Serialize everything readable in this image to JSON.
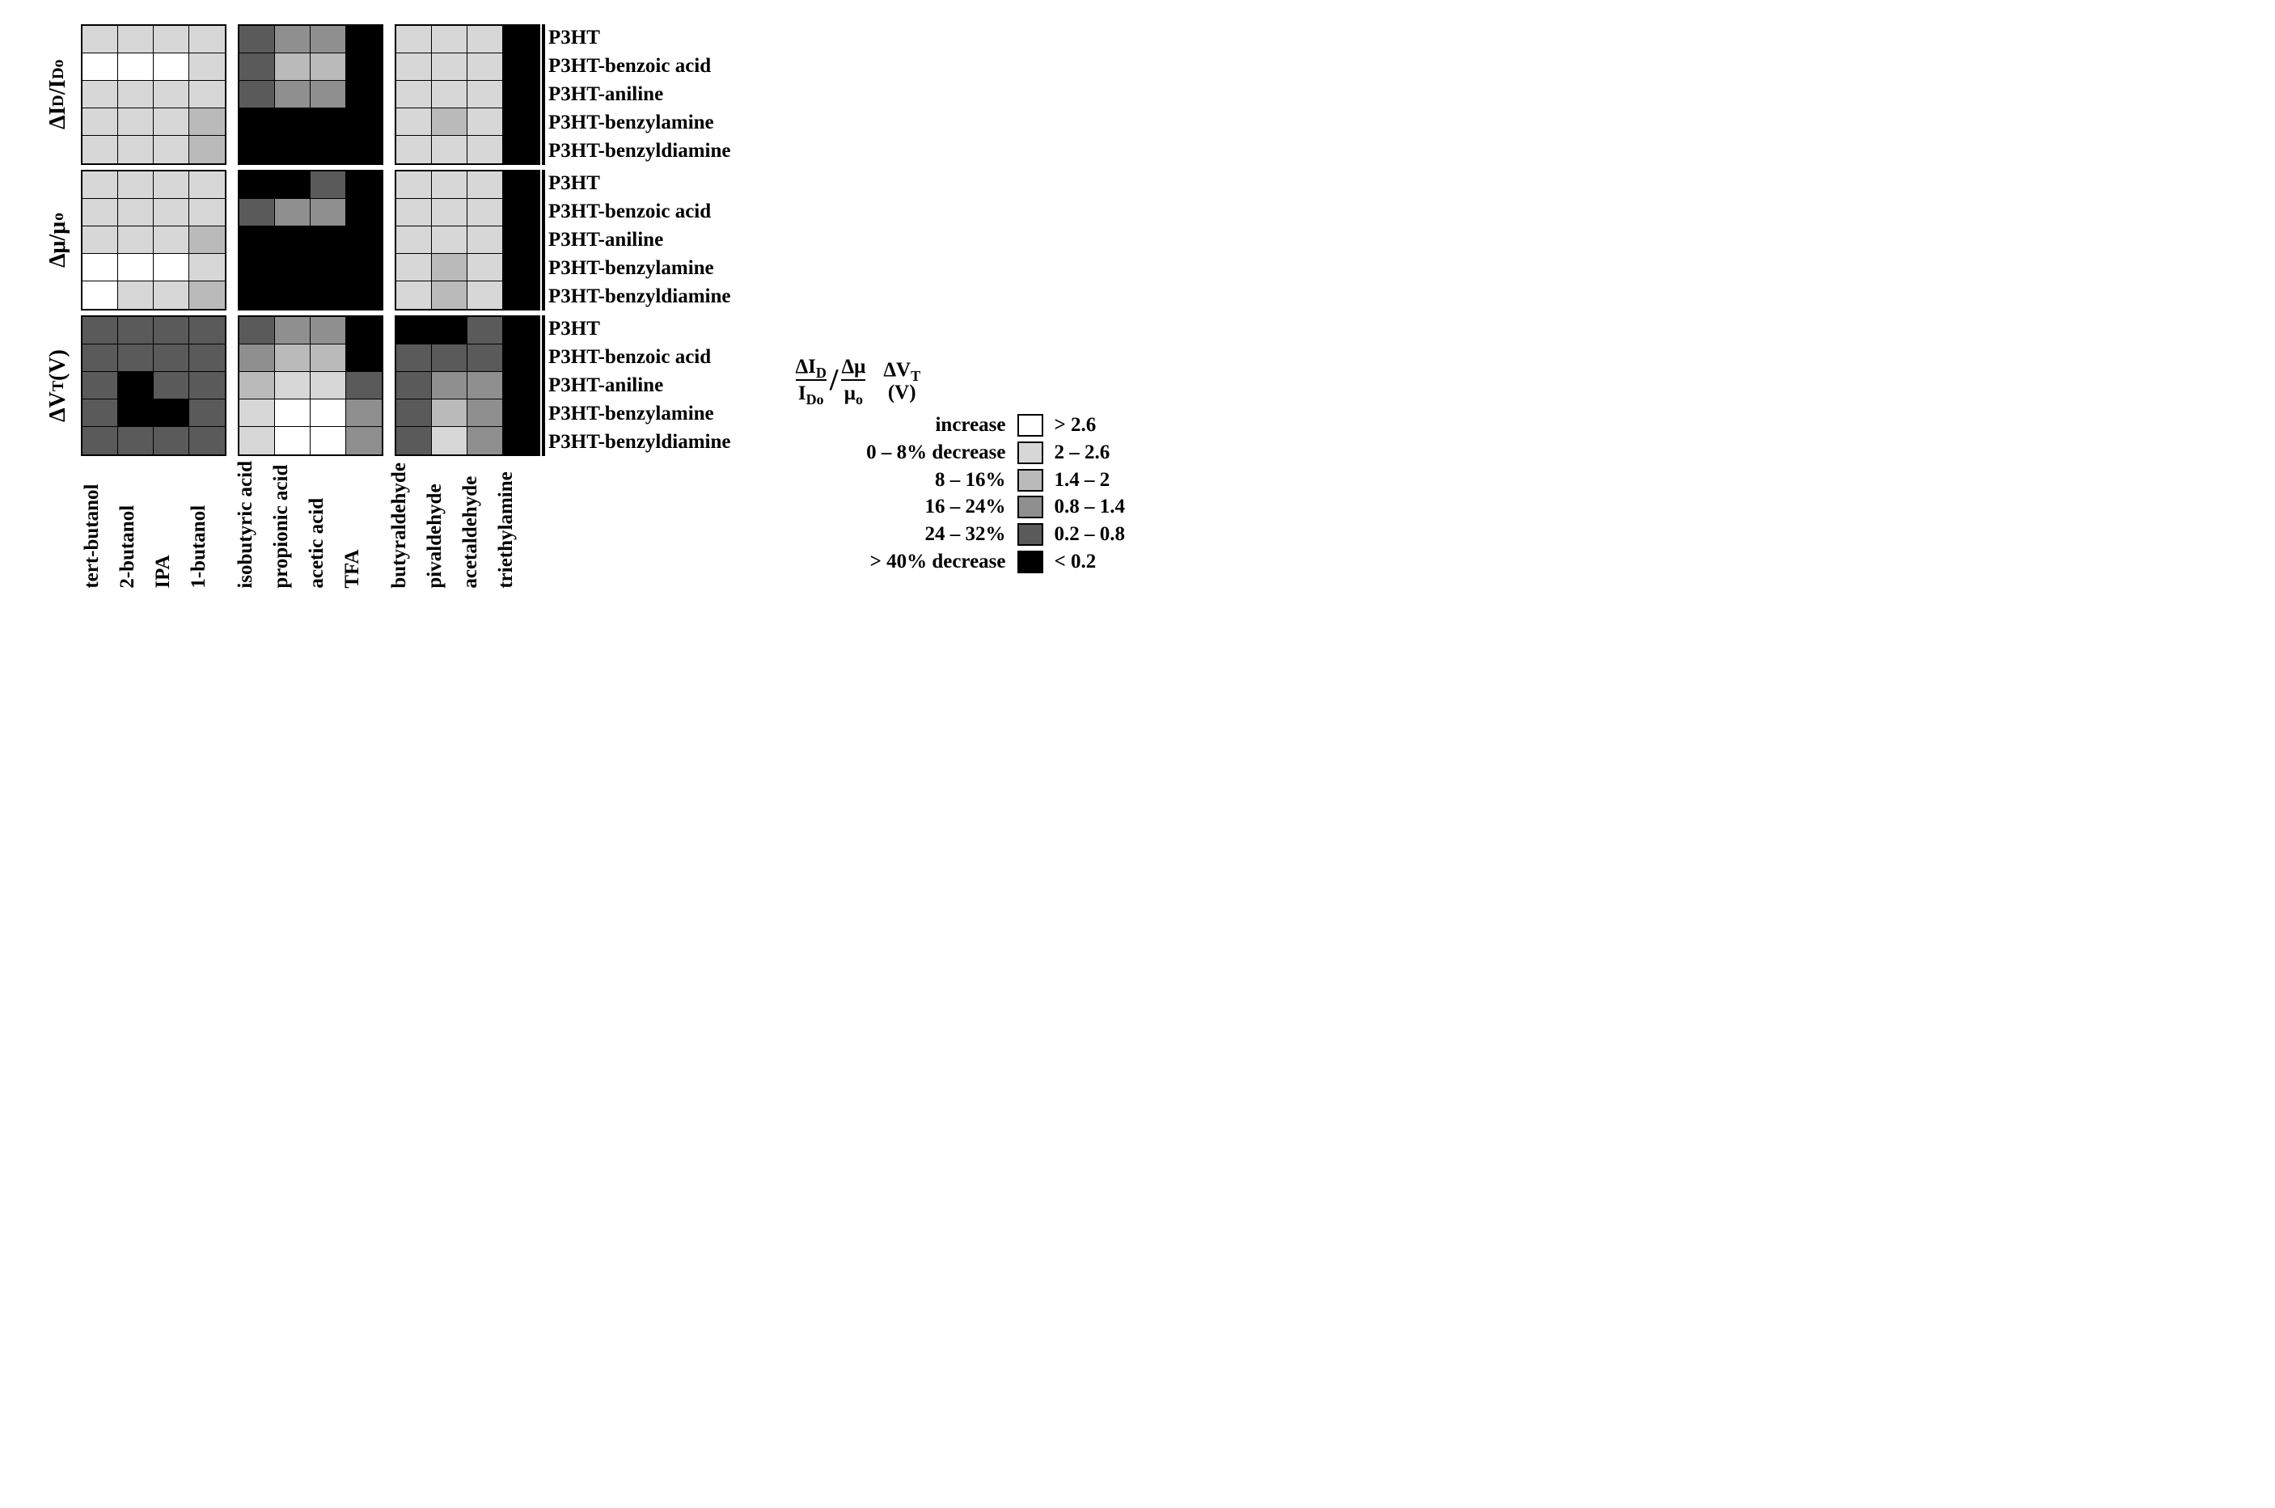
{
  "type": "heatmap_grid",
  "background_color": "#ffffff",
  "grid_line_color": "#000000",
  "text_color": "#000000",
  "font_family": "Times New Roman",
  "tick_fontsize_pt": 18,
  "metric_label_fontsize_pt": 20,
  "colorscale": [
    "#ffffff",
    "#d7d7d7",
    "#bababa",
    "#8f8f8f",
    "#5a5a5a",
    "#000000"
  ],
  "colorscale_labels_left": [
    "increase",
    "0 – 8% decrease",
    "8 – 16%",
    "16 – 24%",
    "24 – 32%",
    "> 40% decrease"
  ],
  "colorscale_labels_right": [
    "> 2.6",
    "2 – 2.6",
    "1.4 – 2",
    "0.8 – 1.4",
    "0.2 – 0.8",
    "< 0.2"
  ],
  "legend_header_left_html": "ΔI<sub>D</sub> / I<sub>Do</sub>  &nbsp;/&nbsp;  Δμ / μ<sub>o</sub>",
  "legend_header_right_html": "ΔV<sub>T</sub> (V)",
  "panels": [
    {
      "name": "alcohols",
      "x_labels": [
        "tert-butanol",
        "2-butanol",
        "IPA",
        "1-butanol"
      ]
    },
    {
      "name": "acids",
      "x_labels": [
        "isobutyric acid",
        "propionic acid",
        "acetic acid",
        "TFA"
      ]
    },
    {
      "name": "aldehydes",
      "x_labels": [
        "butyraldehyde",
        "pivaldehyde",
        "acetaldehyde",
        "triethylamine"
      ]
    }
  ],
  "row_labels": [
    "P3HT",
    "P3HT-benzoic acid",
    "P3HT-aniline",
    "P3HT-benzylamine",
    "P3HT-benzyldiamine"
  ],
  "metrics": [
    {
      "key": "dId",
      "label_html": "ΔI<sub>D</sub>/I<sub>Do</sub>",
      "grids": {
        "alcohols": [
          [
            1,
            1,
            1,
            1
          ],
          [
            0,
            0,
            0,
            1
          ],
          [
            1,
            1,
            1,
            1
          ],
          [
            1,
            1,
            1,
            2
          ],
          [
            1,
            1,
            1,
            2
          ]
        ],
        "acids": [
          [
            4,
            3,
            3,
            5
          ],
          [
            4,
            2,
            2,
            5
          ],
          [
            4,
            3,
            3,
            5
          ],
          [
            5,
            5,
            5,
            5
          ],
          [
            5,
            5,
            5,
            5
          ]
        ],
        "aldehydes": [
          [
            1,
            1,
            1,
            5
          ],
          [
            1,
            1,
            1,
            5
          ],
          [
            1,
            1,
            1,
            5
          ],
          [
            1,
            2,
            1,
            5
          ],
          [
            1,
            1,
            1,
            5
          ]
        ]
      }
    },
    {
      "key": "dmu",
      "label_html": "Δμ/μ<sub>o</sub>",
      "grids": {
        "alcohols": [
          [
            1,
            1,
            1,
            1
          ],
          [
            1,
            1,
            1,
            1
          ],
          [
            1,
            1,
            1,
            2
          ],
          [
            0,
            0,
            0,
            1
          ],
          [
            0,
            1,
            1,
            2
          ]
        ],
        "acids": [
          [
            5,
            5,
            4,
            5
          ],
          [
            4,
            3,
            3,
            5
          ],
          [
            5,
            5,
            5,
            5
          ],
          [
            5,
            5,
            5,
            5
          ],
          [
            5,
            5,
            5,
            5
          ]
        ],
        "aldehydes": [
          [
            1,
            1,
            1,
            5
          ],
          [
            1,
            1,
            1,
            5
          ],
          [
            1,
            1,
            1,
            5
          ],
          [
            1,
            2,
            1,
            5
          ],
          [
            1,
            2,
            1,
            5
          ]
        ]
      }
    },
    {
      "key": "dVt",
      "label_html": "ΔV<sub>T</sub> (V)",
      "grids": {
        "alcohols": [
          [
            4,
            4,
            4,
            4
          ],
          [
            4,
            4,
            4,
            4
          ],
          [
            4,
            5,
            4,
            4
          ],
          [
            4,
            5,
            5,
            4
          ],
          [
            4,
            4,
            4,
            4
          ]
        ],
        "acids": [
          [
            4,
            3,
            3,
            5
          ],
          [
            3,
            2,
            2,
            5
          ],
          [
            2,
            1,
            1,
            4
          ],
          [
            1,
            0,
            0,
            3
          ],
          [
            1,
            0,
            0,
            3
          ]
        ],
        "aldehydes": [
          [
            5,
            5,
            4,
            5
          ],
          [
            4,
            4,
            4,
            5
          ],
          [
            4,
            3,
            3,
            5
          ],
          [
            4,
            2,
            3,
            5
          ],
          [
            4,
            1,
            3,
            5
          ]
        ]
      }
    }
  ]
}
